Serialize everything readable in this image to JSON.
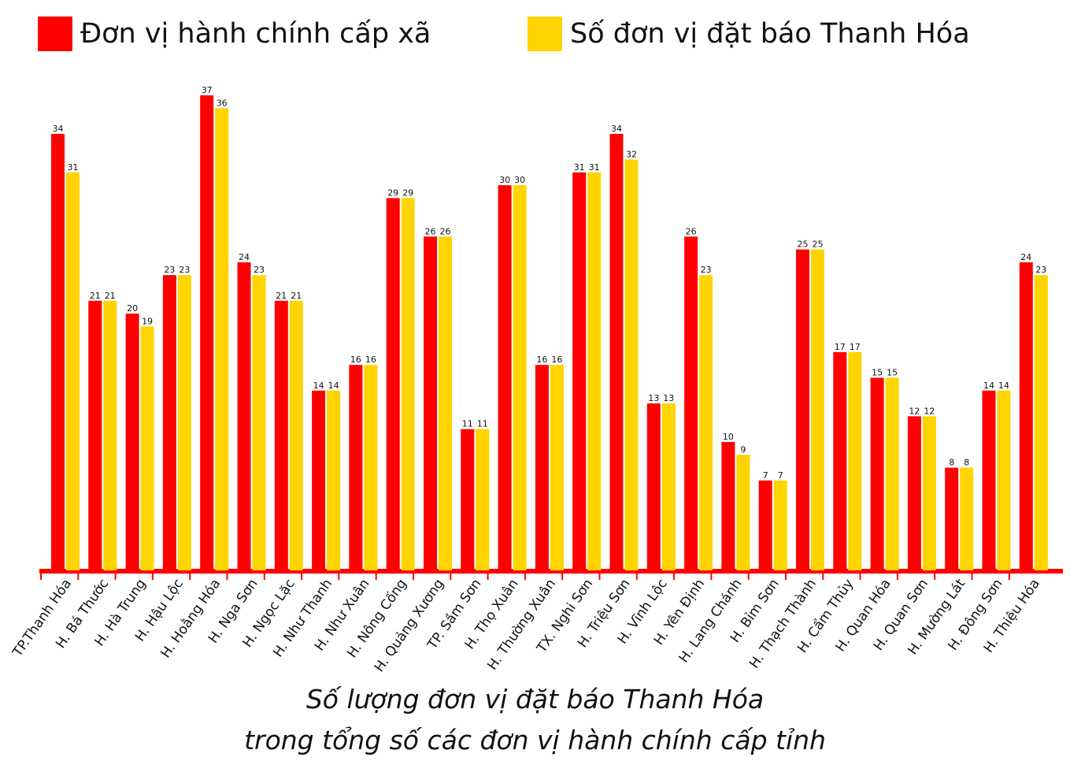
{
  "chart_data": {
    "type": "bar",
    "caption": {
      "line1": "Số lượng đơn vị đặt báo Thanh Hóa",
      "line2": "trong tổng số các đơn vị hành chính cấp tỉnh"
    },
    "legend_position": "top",
    "grid": false,
    "ylim": [
      0,
      37
    ],
    "categories": [
      "TP.Thanh Hóa",
      "H. Bá Thước",
      "H. Hà Trung",
      "H. Hậu Lộc",
      "H. Hoằng Hóa",
      "H. Nga Sơn",
      "H. Ngọc Lặc",
      "H. Như Thanh",
      "H. Như Xuân",
      "H. Nông Cống",
      "H. Quảng Xương",
      "TP. Sầm Sơn",
      "H. Thọ Xuân",
      "H. Thường Xuân",
      "TX. Nghi Sơn",
      "H. Triệu Sơn",
      "H. Vĩnh Lộc",
      "H. Yên Định",
      "H. Lang Chánh",
      "H. Bỉm Sơn",
      "H. Thạch Thành",
      "H. Cẩm Thủy",
      "H. Quan Hóa",
      "H. Quan Sơn",
      "H. Mường Lát",
      "H. Đông Sơn",
      "H. Thiệu Hóa"
    ],
    "series": [
      {
        "name": "Đơn vị hành chính cấp xã",
        "color": "#ff0000",
        "values": [
          34,
          21,
          20,
          23,
          37,
          24,
          21,
          14,
          16,
          29,
          26,
          11,
          30,
          16,
          31,
          34,
          13,
          26,
          10,
          7,
          25,
          17,
          15,
          12,
          8,
          14,
          24
        ]
      },
      {
        "name": "Số đơn vị đặt báo Thanh Hóa",
        "color": "#ffd400",
        "values": [
          31,
          21,
          19,
          23,
          36,
          23,
          21,
          14,
          16,
          29,
          26,
          11,
          30,
          16,
          31,
          32,
          13,
          23,
          9,
          7,
          25,
          17,
          15,
          12,
          8,
          14,
          23
        ]
      }
    ],
    "axis_color": "#ff0000"
  }
}
